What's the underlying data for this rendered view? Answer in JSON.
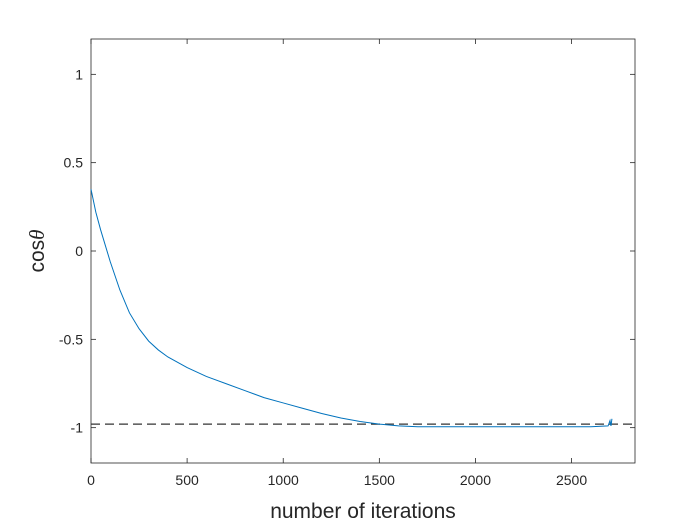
{
  "chart_data": {
    "type": "line",
    "title": "",
    "xlabel": "number of iterations",
    "ylabel_main": "cos",
    "ylabel_symbol": "θ",
    "xlim": [
      0,
      2830
    ],
    "ylim": [
      -1.2,
      1.2
    ],
    "xticks": [
      0,
      500,
      1000,
      1500,
      2000,
      2500
    ],
    "xtick_labels": [
      "0",
      "500",
      "1000",
      "1500",
      "2000",
      "2500"
    ],
    "yticks": [
      1,
      0.5,
      0,
      -0.5,
      -1
    ],
    "ytick_labels": [
      "1",
      "0.5",
      "0",
      "-0.5",
      "-1"
    ],
    "grid": false,
    "series": [
      {
        "color": "#0072BD",
        "x": [
          0,
          25,
          50,
          100,
          150,
          200,
          250,
          300,
          350,
          400,
          500,
          600,
          700,
          800,
          900,
          1000,
          1100,
          1200,
          1300,
          1400,
          1500,
          1600,
          1700,
          1800,
          2000,
          2200,
          2400,
          2600,
          2690,
          2700,
          2705,
          2710
        ],
        "y": [
          0.35,
          0.22,
          0.12,
          -0.06,
          -0.22,
          -0.35,
          -0.44,
          -0.51,
          -0.56,
          -0.6,
          -0.66,
          -0.71,
          -0.75,
          -0.79,
          -0.83,
          -0.86,
          -0.89,
          -0.92,
          -0.945,
          -0.965,
          -0.98,
          -0.99,
          -0.995,
          -0.995,
          -0.995,
          -0.995,
          -0.995,
          -0.995,
          -0.99,
          -0.96,
          -0.99,
          -0.95
        ]
      }
    ],
    "reference_line": {
      "y": -0.98,
      "style": "dashed",
      "color": "#333333"
    }
  }
}
